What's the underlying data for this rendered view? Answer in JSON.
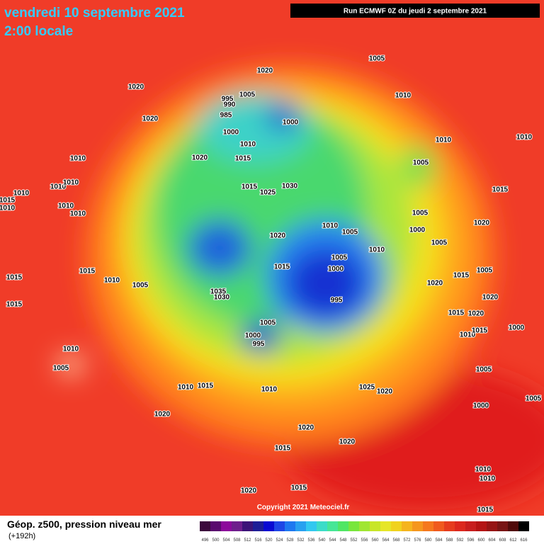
{
  "header": {
    "date": "vendredi 10 septembre 2021",
    "time": "2:00 locale",
    "run": "Run ECMWF 0Z du jeudi 2 septembre 2021"
  },
  "footer": {
    "title": "Géop. z500, pression niveau mer",
    "lead": "(+192h)",
    "copyright": "Copyright 2021 Meteociel.fr"
  },
  "legend": {
    "ticks": [
      496,
      500,
      504,
      508,
      512,
      516,
      520,
      524,
      528,
      532,
      536,
      540,
      544,
      548,
      552,
      556,
      560,
      564,
      568,
      572,
      576,
      580,
      584,
      588,
      592,
      596,
      600,
      604,
      608,
      612,
      616
    ]
  },
  "isobar_labels": [
    1005,
    1020,
    1020,
    1005,
    995,
    990,
    985,
    1010,
    1020,
    1000,
    1000,
    1010,
    1010,
    1010,
    1015,
    1020,
    1005,
    1010,
    1010,
    1010,
    1010,
    1015,
    1010,
    1010,
    1010,
    1015,
    1025,
    1030,
    1015,
    1005,
    1000,
    1020,
    1010,
    1005,
    1020,
    1010,
    1005,
    1005,
    1015,
    1000,
    1015,
    1015,
    1010,
    1005,
    1015,
    1005,
    1020,
    1020,
    1035,
    1030,
    995,
    1015,
    1015,
    1020,
    1010,
    1015,
    1000,
    1005,
    1000,
    995,
    1010,
    1005,
    1005,
    1010,
    1015,
    1010,
    1025,
    1020,
    1005,
    1000,
    1020,
    1020,
    1020,
    1015,
    1010,
    1010,
    1020,
    1015,
    1015
  ]
}
